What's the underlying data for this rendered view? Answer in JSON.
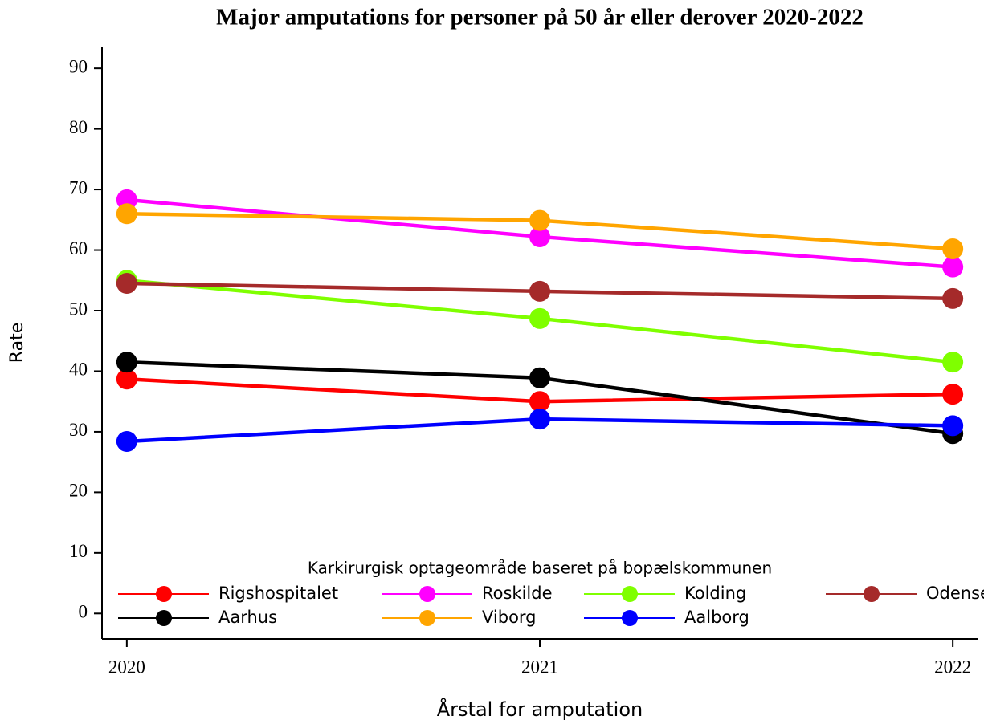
{
  "chart_data": {
    "type": "line",
    "title": "Major amputations for personer på 50 år eller derover 2020-2022",
    "x_label": "Årstal for amputation",
    "y_label": "Rate",
    "legend_title": "Karkirurgisk optageområde baseret på bopælskommunen",
    "legend_position": "lower center",
    "x": [
      2020,
      2021,
      2022
    ],
    "xlim": [
      2019.94,
      2022.06
    ],
    "xticks": [
      2020,
      2021,
      2022
    ],
    "ylim": [
      -4.2,
      93.6
    ],
    "yticks": [
      0,
      10,
      20,
      30,
      40,
      50,
      60,
      70,
      80,
      90
    ],
    "series": [
      {
        "name": "Rigshospitalet",
        "color": "#ff0000",
        "values": [
          38.7,
          35.0,
          36.2
        ]
      },
      {
        "name": "Roskilde",
        "color": "#ff00ff",
        "values": [
          68.3,
          62.2,
          57.2
        ]
      },
      {
        "name": "Kolding",
        "color": "#7fff00",
        "values": [
          55.0,
          48.7,
          41.5
        ]
      },
      {
        "name": "Odense",
        "color": "#a52a2a",
        "values": [
          54.5,
          53.2,
          52.0
        ]
      },
      {
        "name": "Aarhus",
        "color": "#000000",
        "values": [
          41.5,
          38.9,
          29.7
        ]
      },
      {
        "name": "Viborg",
        "color": "#ffa500",
        "values": [
          66.0,
          64.9,
          60.2
        ]
      },
      {
        "name": "Aalborg",
        "color": "#0000ff",
        "values": [
          28.4,
          32.1,
          31.0
        ]
      }
    ]
  }
}
